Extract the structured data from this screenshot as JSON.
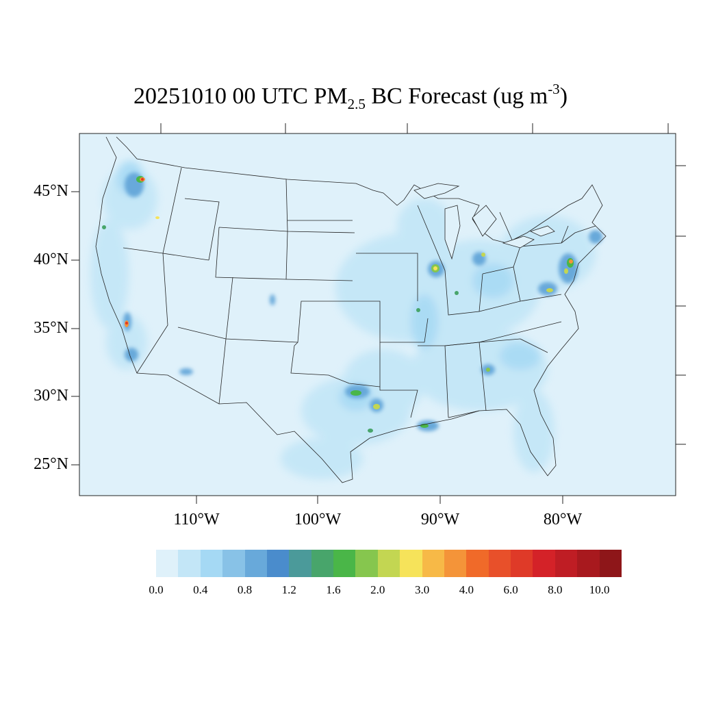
{
  "title": {
    "prefix": "20251010 00 UTC PM",
    "subscript": "2.5",
    "middle": " BC Forecast (ug m",
    "superscript": "-3",
    "suffix": ")"
  },
  "map": {
    "background_color": "#dff1fa",
    "lat_labels": [
      "45°N",
      "40°N",
      "35°N",
      "30°N",
      "25°N"
    ],
    "lon_labels": [
      "110°W",
      "100°W",
      "90°W",
      "80°W"
    ]
  },
  "colorbar": {
    "colors": [
      "#dff1fa",
      "#c3e6f7",
      "#a5d9f4",
      "#88c2e7",
      "#68a9da",
      "#4a8ccc",
      "#4b9a9a",
      "#48a56b",
      "#4ab648",
      "#86c64e",
      "#c3d652",
      "#f6e35a",
      "#f7b947",
      "#f49439",
      "#f06a29",
      "#e8502a",
      "#df3a28",
      "#d42228",
      "#bf1d24",
      "#a8191e",
      "#8e1619"
    ],
    "tick_labels": [
      "0.0",
      "0.4",
      "0.8",
      "1.2",
      "1.6",
      "2.0",
      "3.0",
      "4.0",
      "6.0",
      "8.0",
      "10.0"
    ]
  }
}
